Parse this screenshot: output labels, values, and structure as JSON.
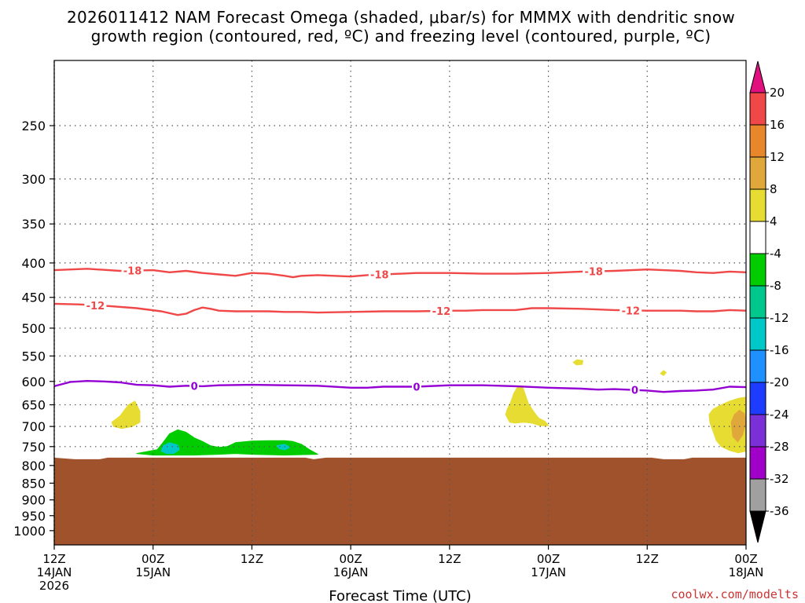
{
  "title": {
    "line1": "2026011412 NAM Forecast Omega (shaded, μbar/s) for MMMX with dendritic snow",
    "line2": "growth region (contoured, red, ºC) and freezing level (contoured, purple, ºC)"
  },
  "credit": "coolwx.com/modelts",
  "colors": {
    "ground": "#a0522d",
    "dgz": "#f04848",
    "freezing": "#9400d3",
    "grid": "#555555"
  },
  "chart_data": {
    "type": "heatmap",
    "title": "2026011412 NAM Forecast Omega (shaded, μbar/s) for MMMX with dendritic snow growth region (contoured, red, ºC) and freezing level (contoured, purple, ºC)",
    "xlabel": "Forecast Time (UTC)",
    "ylabel": "",
    "x_unit": "forecast hour",
    "xlim": [
      0,
      84
    ],
    "ylim": [
      1050,
      200
    ],
    "y_scale": "log",
    "grid": true,
    "x_ticks": [
      {
        "value": 0,
        "line1": "12Z",
        "line2": "14JAN",
        "line3": "2026"
      },
      {
        "value": 12,
        "line1": "00Z",
        "line2": "15JAN",
        "line3": ""
      },
      {
        "value": 24,
        "line1": "12Z",
        "line2": "",
        "line3": ""
      },
      {
        "value": 36,
        "line1": "00Z",
        "line2": "16JAN",
        "line3": ""
      },
      {
        "value": 48,
        "line1": "12Z",
        "line2": "",
        "line3": ""
      },
      {
        "value": 60,
        "line1": "00Z",
        "line2": "17JAN",
        "line3": ""
      },
      {
        "value": 72,
        "line1": "12Z",
        "line2": "",
        "line3": ""
      },
      {
        "value": 84,
        "line1": "00Z",
        "line2": "18JAN",
        "line3": ""
      }
    ],
    "y_ticks": [
      250,
      300,
      350,
      400,
      450,
      500,
      550,
      600,
      650,
      700,
      750,
      800,
      850,
      900,
      950,
      1000
    ],
    "colorbar": {
      "labels": [
        "20",
        "16",
        "12",
        "8",
        "4",
        "-4",
        "-8",
        "-12",
        "-16",
        "-20",
        "-24",
        "-28",
        "-32",
        "-36"
      ],
      "top_arrow_color": "#e0117f",
      "bottom_arrow_color": "#000000",
      "segments": [
        "#f04848",
        "#e8862c",
        "#e0a83a",
        "#e6dc32",
        "#ffffff",
        "#00cc00",
        "#00c88c",
        "#00c8c8",
        "#1e90ff",
        "#1e3cff",
        "#7b2fd6",
        "#a000c8",
        "#a0a0a0"
      ]
    },
    "ground_top_hpa": 780,
    "contours": [
      {
        "level": -18,
        "label": "-18",
        "color": "#f04848",
        "points": [
          [
            0,
            410
          ],
          [
            4,
            408
          ],
          [
            8,
            411
          ],
          [
            12,
            410
          ],
          [
            14,
            413
          ],
          [
            16,
            411
          ],
          [
            18,
            414
          ],
          [
            20,
            416
          ],
          [
            22,
            418
          ],
          [
            24,
            414
          ],
          [
            26,
            415
          ],
          [
            28,
            418
          ],
          [
            29,
            420
          ],
          [
            30,
            418
          ],
          [
            32,
            417
          ],
          [
            34,
            418
          ],
          [
            36,
            419
          ],
          [
            38,
            417
          ],
          [
            40,
            416
          ],
          [
            44,
            414
          ],
          [
            48,
            414
          ],
          [
            52,
            415
          ],
          [
            56,
            415
          ],
          [
            60,
            414
          ],
          [
            64,
            412
          ],
          [
            68,
            411
          ],
          [
            72,
            409
          ],
          [
            74,
            410
          ],
          [
            76,
            411
          ],
          [
            78,
            413
          ],
          [
            80,
            414
          ],
          [
            82,
            412
          ],
          [
            84,
            413
          ]
        ],
        "label_x": [
          9.5,
          39.5,
          65.5
        ]
      },
      {
        "level": -12,
        "label": "-12",
        "color": "#f04848",
        "points": [
          [
            0,
            460
          ],
          [
            3,
            461
          ],
          [
            6,
            463
          ],
          [
            10,
            467
          ],
          [
            13,
            472
          ],
          [
            15,
            478
          ],
          [
            16,
            476
          ],
          [
            17,
            470
          ],
          [
            18,
            466
          ],
          [
            19,
            468
          ],
          [
            20,
            471
          ],
          [
            22,
            472
          ],
          [
            24,
            472
          ],
          [
            26,
            472
          ],
          [
            28,
            473
          ],
          [
            30,
            473
          ],
          [
            32,
            474
          ],
          [
            36,
            473
          ],
          [
            40,
            472
          ],
          [
            44,
            472
          ],
          [
            48,
            471
          ],
          [
            50,
            471
          ],
          [
            52,
            470
          ],
          [
            56,
            470
          ],
          [
            58,
            467
          ],
          [
            60,
            467
          ],
          [
            64,
            468
          ],
          [
            68,
            470
          ],
          [
            72,
            471
          ],
          [
            76,
            471
          ],
          [
            78,
            472
          ],
          [
            80,
            472
          ],
          [
            82,
            470
          ],
          [
            84,
            471
          ]
        ],
        "label_x": [
          5,
          47,
          70
        ]
      },
      {
        "level": 0,
        "label": "0",
        "color": "#9400d3",
        "points": [
          [
            0,
            610
          ],
          [
            2,
            601
          ],
          [
            4,
            599
          ],
          [
            6,
            600
          ],
          [
            8,
            602
          ],
          [
            10,
            607
          ],
          [
            12,
            608
          ],
          [
            14,
            611
          ],
          [
            16,
            609
          ],
          [
            18,
            610
          ],
          [
            20,
            608
          ],
          [
            24,
            607
          ],
          [
            28,
            608
          ],
          [
            32,
            609
          ],
          [
            36,
            613
          ],
          [
            38,
            613
          ],
          [
            40,
            611
          ],
          [
            44,
            611
          ],
          [
            48,
            608
          ],
          [
            52,
            608
          ],
          [
            56,
            610
          ],
          [
            60,
            613
          ],
          [
            64,
            615
          ],
          [
            66,
            617
          ],
          [
            68,
            616
          ],
          [
            72,
            619
          ],
          [
            74,
            622
          ],
          [
            76,
            620
          ],
          [
            78,
            619
          ],
          [
            80,
            617
          ],
          [
            82,
            611
          ],
          [
            84,
            612
          ]
        ],
        "label_x": [
          17,
          44,
          70.5
        ]
      }
    ],
    "omega_regions": [
      {
        "value_range": [
          4,
          8
        ],
        "color": "#e6dc32",
        "points": [
          [
            7,
            690
          ],
          [
            8,
            675
          ],
          [
            8.6,
            660
          ],
          [
            9,
            650
          ],
          [
            9.8,
            642
          ],
          [
            10.4,
            665
          ],
          [
            10.4,
            690
          ],
          [
            9.5,
            700
          ],
          [
            8.2,
            705
          ],
          [
            7.2,
            700
          ]
        ]
      },
      {
        "value_range": [
          -8,
          -4
        ],
        "color": "#00cc00",
        "points": [
          [
            10,
            768
          ],
          [
            12.5,
            758
          ],
          [
            13.2,
            740
          ],
          [
            14,
            718
          ],
          [
            15,
            708
          ],
          [
            16,
            714
          ],
          [
            17,
            728
          ],
          [
            18,
            737
          ],
          [
            19,
            748
          ],
          [
            20,
            752
          ],
          [
            21,
            750
          ],
          [
            22,
            740
          ],
          [
            24,
            736
          ],
          [
            26,
            735
          ],
          [
            28,
            735
          ],
          [
            29,
            737
          ],
          [
            30,
            744
          ],
          [
            31,
            758
          ],
          [
            32,
            770
          ],
          [
            28,
            772
          ],
          [
            24,
            770
          ],
          [
            22,
            768
          ],
          [
            20,
            770
          ],
          [
            17,
            772
          ],
          [
            14,
            772
          ],
          [
            12,
            772
          ]
        ]
      },
      {
        "value_range": [
          -12,
          -8
        ],
        "color": "#00c8c8",
        "points": [
          [
            13,
            762
          ],
          [
            13.2,
            748
          ],
          [
            14,
            740
          ],
          [
            15,
            746
          ],
          [
            15.2,
            758
          ],
          [
            14.5,
            768
          ],
          [
            13.6,
            768
          ]
        ]
      },
      {
        "value_range": [
          -12,
          -8
        ],
        "color": "#00c8c8",
        "points": [
          [
            27,
            748
          ],
          [
            28,
            744
          ],
          [
            28.6,
            752
          ],
          [
            28,
            758
          ],
          [
            27.4,
            756
          ]
        ]
      },
      {
        "value_range": [
          4,
          8
        ],
        "color": "#e6dc32",
        "points": [
          [
            54.8,
            672
          ],
          [
            55,
            660
          ],
          [
            55.4,
            645
          ],
          [
            55.8,
            625
          ],
          [
            56.3,
            610
          ],
          [
            56.9,
            612
          ],
          [
            57.2,
            628
          ],
          [
            57.6,
            648
          ],
          [
            58.2,
            665
          ],
          [
            58.8,
            680
          ],
          [
            59.6,
            688
          ],
          [
            60,
            698
          ],
          [
            59,
            698
          ],
          [
            58,
            692
          ],
          [
            57,
            690
          ],
          [
            56,
            692
          ],
          [
            55.3,
            690
          ]
        ]
      },
      {
        "value_range": [
          4,
          8
        ],
        "color": "#e6dc32",
        "points": [
          [
            63,
            562
          ],
          [
            63.5,
            557
          ],
          [
            64.2,
            559
          ],
          [
            64.1,
            566
          ],
          [
            63.4,
            567
          ]
        ]
      },
      {
        "value_range": [
          4,
          8
        ],
        "color": "#e6dc32",
        "points": [
          [
            73.6,
            584
          ],
          [
            74,
            578
          ],
          [
            74.3,
            582
          ],
          [
            74,
            588
          ]
        ]
      },
      {
        "value_range": [
          4,
          8
        ],
        "color": "#e6dc32",
        "points": [
          [
            79.6,
            690
          ],
          [
            79.5,
            672
          ],
          [
            80,
            660
          ],
          [
            81,
            650
          ],
          [
            82,
            642
          ],
          [
            83,
            636
          ],
          [
            84,
            633
          ],
          [
            84,
            762
          ],
          [
            83,
            766
          ],
          [
            82,
            760
          ],
          [
            81,
            750
          ],
          [
            80.4,
            735
          ],
          [
            80,
            712
          ]
        ]
      },
      {
        "value_range": [
          8,
          12
        ],
        "color": "#e0a83a",
        "points": [
          [
            82.2,
            690
          ],
          [
            82.6,
            672
          ],
          [
            83.2,
            662
          ],
          [
            83.8,
            670
          ],
          [
            84,
            690
          ],
          [
            83.6,
            720
          ],
          [
            83,
            738
          ],
          [
            82.4,
            725
          ]
        ]
      }
    ]
  }
}
